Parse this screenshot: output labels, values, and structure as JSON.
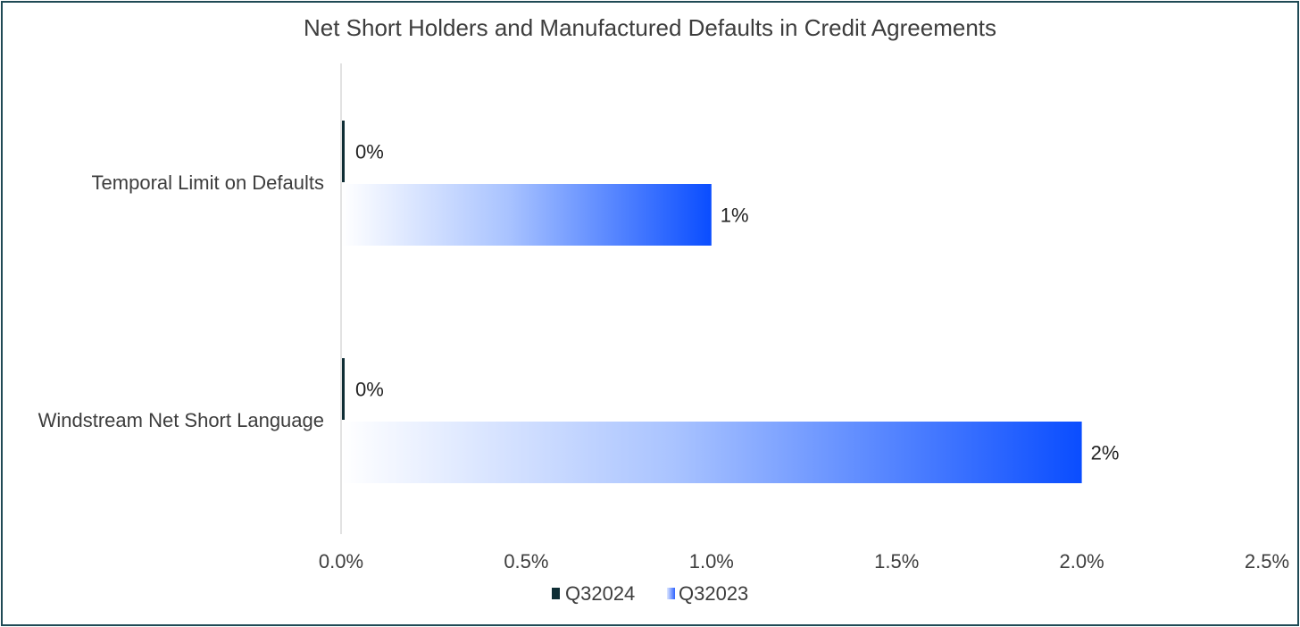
{
  "chart_data": {
    "type": "bar",
    "orientation": "horizontal",
    "title": "Net Short Holders and Manufactured Defaults in Credit Agreements",
    "categories": [
      "Temporal Limit on Defaults",
      "Windstream Net Short Language"
    ],
    "series": [
      {
        "name": "Q32024",
        "values": [
          0,
          0
        ],
        "labels": [
          "0%",
          "0%"
        ],
        "color": "#0f2e35"
      },
      {
        "name": "Q32023",
        "values": [
          0.01,
          0.02
        ],
        "labels": [
          "1%",
          "2%"
        ],
        "color": "#0a4dff",
        "fill": "gradient"
      }
    ],
    "xlim": [
      0,
      0.025
    ],
    "xticks": [
      0,
      0.005,
      0.01,
      0.015,
      0.02,
      0.025
    ],
    "xtick_labels": [
      "0.0%",
      "0.5%",
      "1.0%",
      "1.5%",
      "2.0%",
      "2.5%"
    ],
    "xlabel": "",
    "ylabel": "",
    "grid": false,
    "legend_position": "bottom"
  }
}
